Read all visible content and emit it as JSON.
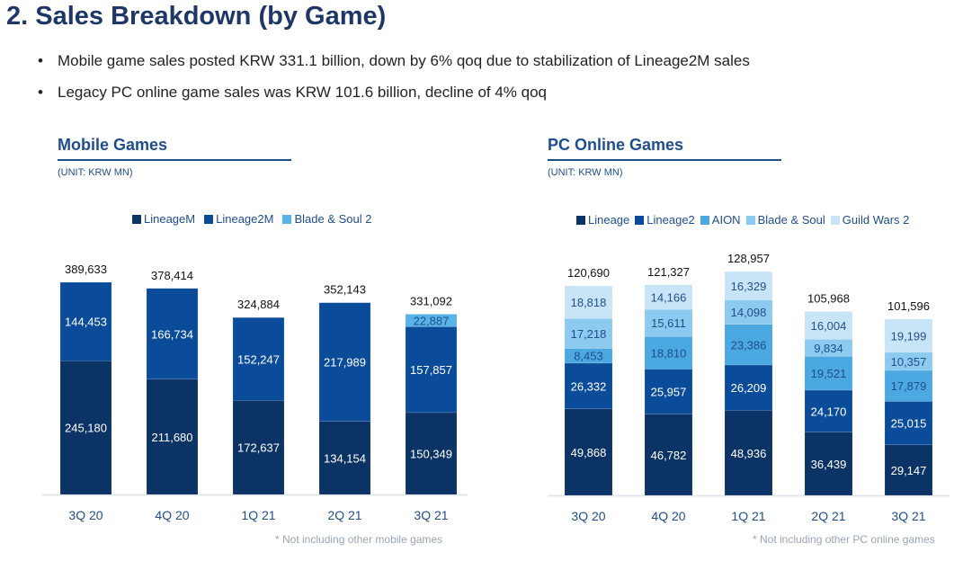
{
  "title": "2. Sales Breakdown (by Game)",
  "bullets": [
    "Mobile game sales posted KRW 331.1 billion, down by 6% qoq due to stabilization of Lineage2M sales",
    "Legacy PC online game sales was KRW 101.6 billion, decline of 4% qoq"
  ],
  "chart_data": [
    {
      "type": "bar",
      "stacked": true,
      "title": "Mobile Games",
      "unit": "(UNIT: KRW MN)",
      "note": "* Not including other mobile games",
      "legend_position": "top",
      "grid": false,
      "categories": [
        "3Q 20",
        "4Q 20",
        "1Q 21",
        "2Q 21",
        "3Q 21"
      ],
      "totals": [
        "389,633",
        "378,414",
        "324,884",
        "352,143",
        "331,092"
      ],
      "series": [
        {
          "name": "LineageM",
          "color": "#0c3366",
          "values": [
            245180,
            211680,
            172637,
            134154,
            150349
          ]
        },
        {
          "name": "Lineage2M",
          "color": "#0b4c9a",
          "values": [
            144453,
            166734,
            152247,
            217989,
            157857
          ]
        },
        {
          "name": "Blade & Soul 2",
          "color": "#58b3e6",
          "values": [
            null,
            null,
            null,
            null,
            22887
          ]
        }
      ]
    },
    {
      "type": "bar",
      "stacked": true,
      "title": "PC Online Games",
      "unit": "(UNIT: KRW MN)",
      "note": "* Not including other PC online games",
      "legend_position": "top",
      "grid": false,
      "categories": [
        "3Q 20",
        "4Q 20",
        "1Q 21",
        "2Q 21",
        "3Q 21"
      ],
      "totals": [
        "120,690",
        "121,327",
        "128,957",
        "105,968",
        "101,596"
      ],
      "series": [
        {
          "name": "Lineage",
          "color": "#0c3366",
          "values": [
            49868,
            46782,
            48936,
            36439,
            29147
          ]
        },
        {
          "name": "Lineage2",
          "color": "#0b4c9a",
          "values": [
            26332,
            25957,
            26209,
            24170,
            25015
          ]
        },
        {
          "name": "AION",
          "color": "#4ba8e0",
          "values": [
            8453,
            18810,
            23386,
            19521,
            17879
          ]
        },
        {
          "name": "Blade & Soul",
          "color": "#8ccbef",
          "values": [
            17218,
            15611,
            14098,
            9834,
            10357
          ]
        },
        {
          "name": "Guild Wars 2",
          "color": "#c8e5f7",
          "values": [
            18818,
            14166,
            16329,
            16004,
            19199
          ]
        }
      ]
    }
  ]
}
